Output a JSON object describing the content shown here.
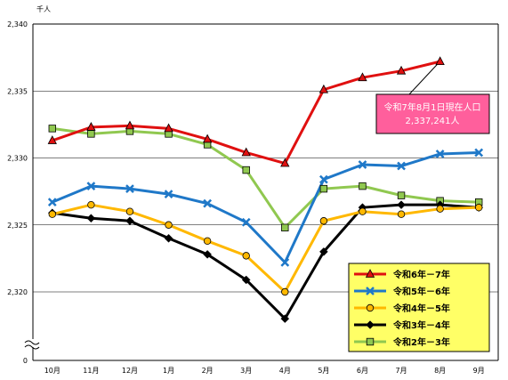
{
  "chart_data": {
    "type": "line",
    "title": "",
    "y_unit_label": "千人",
    "categories": [
      "10月",
      "11月",
      "12月",
      "1月",
      "2月",
      "3月",
      "4月",
      "5月",
      "6月",
      "7月",
      "8月",
      "9月"
    ],
    "ylim": [
      2320,
      2340
    ],
    "y_ticks": [
      "2,340",
      "2,335",
      "2,330",
      "2,325",
      "2,320"
    ],
    "y_zero_label": "0",
    "axis_break": true,
    "grid": true,
    "legend_position": "bottom-right",
    "series": [
      {
        "name": "令和6年－7年",
        "color": "#e01010",
        "marker": "triangle",
        "values": [
          2331.3,
          2332.3,
          2332.4,
          2332.2,
          2331.4,
          2330.4,
          2329.6,
          2335.1,
          2336.0,
          2336.5,
          2337.2,
          null
        ]
      },
      {
        "name": "令和5年－6年",
        "color": "#1f78c8",
        "marker": "x",
        "values": [
          2326.7,
          2327.9,
          2327.7,
          2327.3,
          2326.6,
          2325.2,
          2322.2,
          2328.4,
          2329.5,
          2329.4,
          2330.3,
          2330.4
        ]
      },
      {
        "name": "令和4年－5年",
        "color": "#ffb800",
        "marker": "circle",
        "values": [
          2325.8,
          2326.5,
          2326.0,
          2325.0,
          2323.8,
          2322.7,
          2320.0,
          2325.3,
          2326.0,
          2325.8,
          2326.2,
          2326.3
        ]
      },
      {
        "name": "令和3年－4年",
        "color": "#000000",
        "marker": "diamond",
        "values": [
          2325.9,
          2325.5,
          2325.3,
          2324.0,
          2322.8,
          2320.9,
          2318.0,
          2323.0,
          2326.3,
          2326.5,
          2326.5,
          2326.3
        ]
      },
      {
        "name": "令和2年－3年",
        "color": "#90c850",
        "marker": "square",
        "values": [
          2332.2,
          2331.8,
          2332.0,
          2331.8,
          2331.0,
          2329.1,
          2324.8,
          2327.7,
          2327.9,
          2327.2,
          2326.8,
          2326.7
        ]
      }
    ],
    "callout": {
      "line1": "令和7年8月1日現在人口",
      "line2": "2,337,241人",
      "points_to_series": 0,
      "points_to_category": 10,
      "bg_color": "#ff5f9c"
    }
  }
}
